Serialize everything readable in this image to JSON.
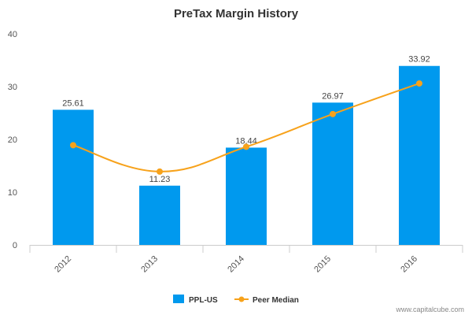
{
  "chart_data": {
    "type": "bar",
    "title": "PreTax Margin History",
    "categories": [
      "2012",
      "2013",
      "2014",
      "2015",
      "2016"
    ],
    "series": [
      {
        "name": "PPL-US",
        "type": "bar",
        "color": "#0099ee",
        "values": [
          25.61,
          11.23,
          18.44,
          26.97,
          33.92
        ],
        "labels": [
          "25.61",
          "11.23",
          "18.44",
          "26.97",
          "33.92"
        ]
      },
      {
        "name": "Peer Median",
        "type": "line",
        "color": "#f7a21b",
        "values": [
          18.9,
          13.9,
          18.6,
          24.8,
          30.6
        ]
      }
    ],
    "ylim": [
      0,
      40
    ],
    "yticks": [
      "0",
      "10",
      "20",
      "30",
      "40"
    ],
    "grid": false,
    "legend": "bottom-center"
  },
  "credit": "www.capitalcube.com"
}
